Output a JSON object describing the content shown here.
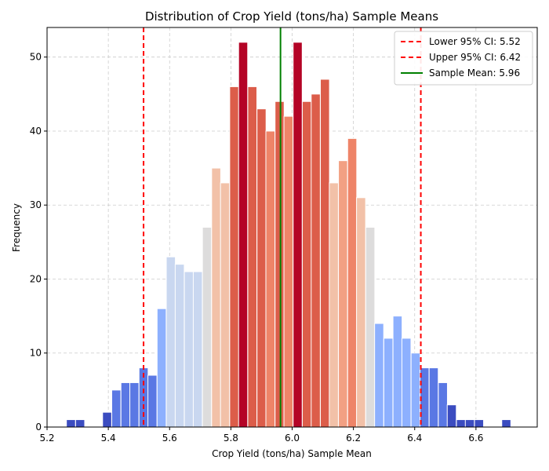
{
  "chart_data": {
    "type": "bar",
    "title": "Distribution of Crop Yield (tons/ha) Sample Means",
    "xlabel": "Crop Yield (tons/ha) Sample Mean",
    "ylabel": "Frequency",
    "xlim": [
      5.2,
      6.8
    ],
    "ylim": [
      0,
      54
    ],
    "xticks": [
      "5.2",
      "5.4",
      "5.6",
      "5.8",
      "6.0",
      "6.2",
      "6.4",
      "6.6"
    ],
    "yticks": [
      "0",
      "10",
      "20",
      "30",
      "40",
      "50"
    ],
    "grid": true,
    "legend_placement": "top-right",
    "bin_width": 0.0296,
    "bins": [
      {
        "x": 5.278,
        "count": 1,
        "color": "#3b4cc0"
      },
      {
        "x": 5.308,
        "count": 1,
        "color": "#3b4cc0"
      },
      {
        "x": 5.337,
        "count": 0,
        "color": "#3b4cc0"
      },
      {
        "x": 5.367,
        "count": 0,
        "color": "#3b4cc0"
      },
      {
        "x": 5.396,
        "count": 2,
        "color": "#3b4cc0"
      },
      {
        "x": 5.426,
        "count": 5,
        "color": "#5a78e4"
      },
      {
        "x": 5.456,
        "count": 6,
        "color": "#5a78e4"
      },
      {
        "x": 5.485,
        "count": 6,
        "color": "#5a78e4"
      },
      {
        "x": 5.515,
        "count": 8,
        "color": "#5a78e4"
      },
      {
        "x": 5.544,
        "count": 7,
        "color": "#5a78e4"
      },
      {
        "x": 5.574,
        "count": 16,
        "color": "#8db0fe"
      },
      {
        "x": 5.604,
        "count": 23,
        "color": "#c9d7f0"
      },
      {
        "x": 5.633,
        "count": 22,
        "color": "#c9d7f0"
      },
      {
        "x": 5.663,
        "count": 21,
        "color": "#c9d7f0"
      },
      {
        "x": 5.692,
        "count": 21,
        "color": "#c9d7f0"
      },
      {
        "x": 5.722,
        "count": 27,
        "color": "#dddcdc"
      },
      {
        "x": 5.752,
        "count": 35,
        "color": "#f2c1a8"
      },
      {
        "x": 5.781,
        "count": 33,
        "color": "#f2c1a8"
      },
      {
        "x": 5.811,
        "count": 46,
        "color": "#dc5d4a"
      },
      {
        "x": 5.84,
        "count": 52,
        "color": "#b40426"
      },
      {
        "x": 5.87,
        "count": 46,
        "color": "#dc5d4a"
      },
      {
        "x": 5.9,
        "count": 43,
        "color": "#dc5d4a"
      },
      {
        "x": 5.929,
        "count": 40,
        "color": "#ee8468"
      },
      {
        "x": 5.959,
        "count": 44,
        "color": "#dc5d4a"
      },
      {
        "x": 5.988,
        "count": 42,
        "color": "#ee8468"
      },
      {
        "x": 6.018,
        "count": 52,
        "color": "#b40426"
      },
      {
        "x": 6.048,
        "count": 44,
        "color": "#dc5d4a"
      },
      {
        "x": 6.077,
        "count": 45,
        "color": "#dc5d4a"
      },
      {
        "x": 6.107,
        "count": 47,
        "color": "#dc5d4a"
      },
      {
        "x": 6.136,
        "count": 33,
        "color": "#f2c1a8"
      },
      {
        "x": 6.166,
        "count": 36,
        "color": "#f2a083"
      },
      {
        "x": 6.196,
        "count": 39,
        "color": "#ee8468"
      },
      {
        "x": 6.225,
        "count": 31,
        "color": "#f2c1a8"
      },
      {
        "x": 6.255,
        "count": 27,
        "color": "#dddcdc"
      },
      {
        "x": 6.284,
        "count": 14,
        "color": "#8db0fe"
      },
      {
        "x": 6.314,
        "count": 12,
        "color": "#8db0fe"
      },
      {
        "x": 6.344,
        "count": 15,
        "color": "#8db0fe"
      },
      {
        "x": 6.373,
        "count": 12,
        "color": "#8db0fe"
      },
      {
        "x": 6.403,
        "count": 10,
        "color": "#8db0fe"
      },
      {
        "x": 6.432,
        "count": 8,
        "color": "#5a78e4"
      },
      {
        "x": 6.462,
        "count": 8,
        "color": "#5a78e4"
      },
      {
        "x": 6.492,
        "count": 6,
        "color": "#5a78e4"
      },
      {
        "x": 6.521,
        "count": 3,
        "color": "#3b4cc0"
      },
      {
        "x": 6.551,
        "count": 1,
        "color": "#3b4cc0"
      },
      {
        "x": 6.58,
        "count": 1,
        "color": "#3b4cc0"
      },
      {
        "x": 6.61,
        "count": 1,
        "color": "#3b4cc0"
      },
      {
        "x": 6.64,
        "count": 0,
        "color": "#3b4cc0"
      },
      {
        "x": 6.669,
        "count": 0,
        "color": "#3b4cc0"
      },
      {
        "x": 6.699,
        "count": 1,
        "color": "#3b4cc0"
      }
    ],
    "lines": [
      {
        "label": "Lower 95% CI: 5.52",
        "x": 5.515,
        "color": "#ff0000",
        "style": "dashed"
      },
      {
        "label": "Upper 95% CI: 6.42",
        "x": 6.42,
        "color": "#ff0000",
        "style": "dashed"
      },
      {
        "label": "Sample Mean: 5.96",
        "x": 5.962,
        "color": "#008000",
        "style": "solid"
      }
    ]
  }
}
